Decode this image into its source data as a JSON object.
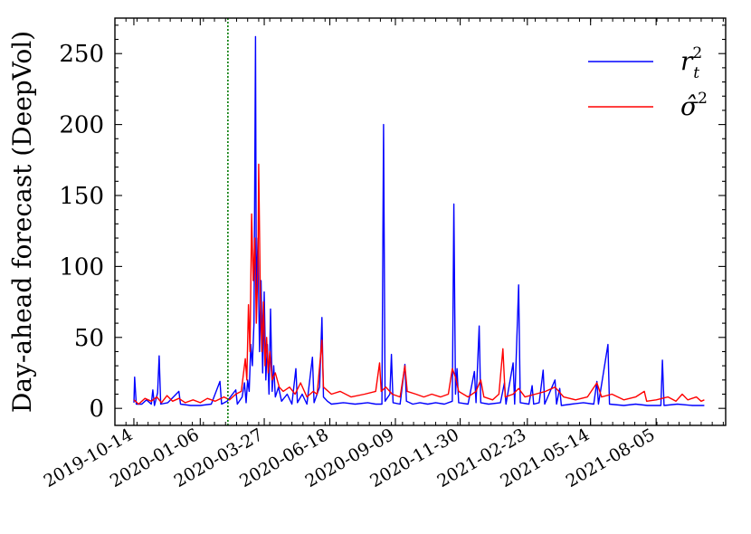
{
  "chart_data": {
    "type": "line",
    "title": "",
    "xlabel": "",
    "ylabel": "Day-ahead forecast (DeepVol)",
    "x_range": [
      "2019-09-20",
      "2021-11-01"
    ],
    "ylim": [
      -12,
      275
    ],
    "yticks": [
      0,
      50,
      100,
      150,
      200,
      250
    ],
    "xticks": [
      "2019-10-14",
      "2020-01-06",
      "2020-03-27",
      "2020-06-18",
      "2020-09-09",
      "2020-11-30",
      "2021-02-23",
      "2021-05-14",
      "2021-08-05"
    ],
    "grid": false,
    "legend_position": "top-right",
    "colors": {
      "realized": "#0000ff",
      "forecast": "#ff0000",
      "cutoff_line": "#007a00"
    },
    "vertical_line_date": "2020-02-10",
    "series": [
      {
        "name": "r_t^2",
        "legend_text": "r",
        "legend_sup": "2",
        "legend_sub": "t",
        "color": "#0000ff",
        "points": [
          [
            "2019-10-14",
            4
          ],
          [
            "2019-10-15",
            22
          ],
          [
            "2019-10-17",
            3
          ],
          [
            "2019-10-24",
            3
          ],
          [
            "2019-10-30",
            6
          ],
          [
            "2019-11-05",
            3
          ],
          [
            "2019-11-07",
            13
          ],
          [
            "2019-11-09",
            2
          ],
          [
            "2019-11-13",
            11
          ],
          [
            "2019-11-15",
            37
          ],
          [
            "2019-11-17",
            3
          ],
          [
            "2019-11-26",
            4
          ],
          [
            "2019-12-10",
            12
          ],
          [
            "2019-12-12",
            3
          ],
          [
            "2019-12-25",
            2
          ],
          [
            "2020-01-06",
            2
          ],
          [
            "2020-01-20",
            3
          ],
          [
            "2020-01-31",
            19
          ],
          [
            "2020-02-02",
            3
          ],
          [
            "2020-02-09",
            5
          ],
          [
            "2020-02-20",
            13
          ],
          [
            "2020-02-22",
            3
          ],
          [
            "2020-02-28",
            8
          ],
          [
            "2020-03-02",
            18
          ],
          [
            "2020-03-04",
            4
          ],
          [
            "2020-03-06",
            20
          ],
          [
            "2020-03-08",
            12
          ],
          [
            "2020-03-10",
            45
          ],
          [
            "2020-03-12",
            30
          ],
          [
            "2020-03-14",
            60
          ],
          [
            "2020-03-16",
            262
          ],
          [
            "2020-03-17",
            75
          ],
          [
            "2020-03-19",
            120
          ],
          [
            "2020-03-21",
            40
          ],
          [
            "2020-03-23",
            90
          ],
          [
            "2020-03-25",
            25
          ],
          [
            "2020-03-27",
            82
          ],
          [
            "2020-03-29",
            20
          ],
          [
            "2020-03-31",
            45
          ],
          [
            "2020-04-02",
            10
          ],
          [
            "2020-04-04",
            70
          ],
          [
            "2020-04-06",
            12
          ],
          [
            "2020-04-08",
            30
          ],
          [
            "2020-04-10",
            8
          ],
          [
            "2020-04-14",
            15
          ],
          [
            "2020-04-18",
            5
          ],
          [
            "2020-04-25",
            10
          ],
          [
            "2020-05-01",
            3
          ],
          [
            "2020-05-06",
            28
          ],
          [
            "2020-05-08",
            4
          ],
          [
            "2020-05-14",
            10
          ],
          [
            "2020-05-20",
            3
          ],
          [
            "2020-05-27",
            36
          ],
          [
            "2020-05-29",
            4
          ],
          [
            "2020-06-05",
            15
          ],
          [
            "2020-06-08",
            64
          ],
          [
            "2020-06-10",
            8
          ],
          [
            "2020-06-15",
            5
          ],
          [
            "2020-06-20",
            3
          ],
          [
            "2020-07-05",
            4
          ],
          [
            "2020-07-20",
            3
          ],
          [
            "2020-08-05",
            4
          ],
          [
            "2020-08-15",
            3
          ],
          [
            "2020-08-23",
            3
          ],
          [
            "2020-08-25",
            200
          ],
          [
            "2020-08-27",
            5
          ],
          [
            "2020-09-02",
            10
          ],
          [
            "2020-09-04",
            38
          ],
          [
            "2020-09-06",
            4
          ],
          [
            "2020-09-15",
            3
          ],
          [
            "2020-09-21",
            31
          ],
          [
            "2020-09-23",
            5
          ],
          [
            "2020-10-01",
            3
          ],
          [
            "2020-10-10",
            4
          ],
          [
            "2020-10-20",
            3
          ],
          [
            "2020-10-30",
            4
          ],
          [
            "2020-11-10",
            3
          ],
          [
            "2020-11-20",
            5
          ],
          [
            "2020-11-22",
            144
          ],
          [
            "2020-11-24",
            10
          ],
          [
            "2020-11-26",
            28
          ],
          [
            "2020-11-28",
            4
          ],
          [
            "2020-12-10",
            3
          ],
          [
            "2020-12-18",
            26
          ],
          [
            "2020-12-20",
            4
          ],
          [
            "2020-12-24",
            58
          ],
          [
            "2020-12-26",
            4
          ],
          [
            "2021-01-05",
            3
          ],
          [
            "2021-01-20",
            4
          ],
          [
            "2021-01-25",
            18
          ],
          [
            "2021-01-27",
            3
          ],
          [
            "2021-02-05",
            32
          ],
          [
            "2021-02-07",
            3
          ],
          [
            "2021-02-12",
            87
          ],
          [
            "2021-02-14",
            4
          ],
          [
            "2021-02-25",
            3
          ],
          [
            "2021-03-01",
            16
          ],
          [
            "2021-03-03",
            3
          ],
          [
            "2021-03-10",
            4
          ],
          [
            "2021-03-15",
            27
          ],
          [
            "2021-03-17",
            3
          ],
          [
            "2021-03-30",
            20
          ],
          [
            "2021-04-01",
            3
          ],
          [
            "2021-04-05",
            14
          ],
          [
            "2021-04-07",
            2
          ],
          [
            "2021-04-20",
            3
          ],
          [
            "2021-05-05",
            4
          ],
          [
            "2021-05-18",
            3
          ],
          [
            "2021-05-22",
            19
          ],
          [
            "2021-05-24",
            3
          ],
          [
            "2021-06-05",
            45
          ],
          [
            "2021-06-07",
            3
          ],
          [
            "2021-06-25",
            2
          ],
          [
            "2021-07-10",
            3
          ],
          [
            "2021-07-25",
            2
          ],
          [
            "2021-08-11",
            2
          ],
          [
            "2021-08-13",
            34
          ],
          [
            "2021-08-15",
            2
          ],
          [
            "2021-09-01",
            3
          ],
          [
            "2021-09-20",
            2
          ],
          [
            "2021-10-05",
            2
          ]
        ]
      },
      {
        "name": "sigma_hat^2",
        "legend_text": "σ̂",
        "legend_sup": "2",
        "legend_sub": "",
        "color": "#ff0000",
        "points": [
          [
            "2019-10-14",
            6
          ],
          [
            "2019-10-20",
            3
          ],
          [
            "2019-10-28",
            7
          ],
          [
            "2019-11-05",
            5
          ],
          [
            "2019-11-12",
            8
          ],
          [
            "2019-11-18",
            4
          ],
          [
            "2019-11-25",
            9
          ],
          [
            "2019-12-02",
            5
          ],
          [
            "2019-12-10",
            7
          ],
          [
            "2019-12-18",
            4
          ],
          [
            "2019-12-28",
            6
          ],
          [
            "2020-01-06",
            4
          ],
          [
            "2020-01-15",
            7
          ],
          [
            "2020-01-25",
            5
          ],
          [
            "2020-02-05",
            8
          ],
          [
            "2020-02-12",
            6
          ],
          [
            "2020-02-20",
            10
          ],
          [
            "2020-02-27",
            12
          ],
          [
            "2020-03-03",
            35
          ],
          [
            "2020-03-05",
            20
          ],
          [
            "2020-03-07",
            73
          ],
          [
            "2020-03-09",
            40
          ],
          [
            "2020-03-11",
            137
          ],
          [
            "2020-03-13",
            90
          ],
          [
            "2020-03-15",
            120
          ],
          [
            "2020-03-17",
            60
          ],
          [
            "2020-03-19",
            100
          ],
          [
            "2020-03-20",
            172
          ],
          [
            "2020-03-22",
            80
          ],
          [
            "2020-03-24",
            40
          ],
          [
            "2020-03-26",
            75
          ],
          [
            "2020-03-28",
            30
          ],
          [
            "2020-03-30",
            50
          ],
          [
            "2020-04-01",
            25
          ],
          [
            "2020-04-03",
            40
          ],
          [
            "2020-04-06",
            20
          ],
          [
            "2020-04-10",
            25
          ],
          [
            "2020-04-15",
            15
          ],
          [
            "2020-04-20",
            12
          ],
          [
            "2020-04-28",
            15
          ],
          [
            "2020-05-05",
            10
          ],
          [
            "2020-05-12",
            18
          ],
          [
            "2020-05-20",
            8
          ],
          [
            "2020-05-28",
            12
          ],
          [
            "2020-06-02",
            10
          ],
          [
            "2020-06-08",
            48
          ],
          [
            "2020-06-10",
            15
          ],
          [
            "2020-06-20",
            10
          ],
          [
            "2020-07-01",
            12
          ],
          [
            "2020-07-15",
            8
          ],
          [
            "2020-08-01",
            10
          ],
          [
            "2020-08-15",
            12
          ],
          [
            "2020-08-20",
            32
          ],
          [
            "2020-08-22",
            12
          ],
          [
            "2020-08-28",
            15
          ],
          [
            "2020-09-05",
            10
          ],
          [
            "2020-09-15",
            8
          ],
          [
            "2020-09-21",
            30
          ],
          [
            "2020-09-24",
            12
          ],
          [
            "2020-10-05",
            10
          ],
          [
            "2020-10-15",
            8
          ],
          [
            "2020-10-25",
            10
          ],
          [
            "2020-11-05",
            8
          ],
          [
            "2020-11-15",
            10
          ],
          [
            "2020-11-20",
            28
          ],
          [
            "2020-11-24",
            22
          ],
          [
            "2020-11-28",
            12
          ],
          [
            "2020-12-10",
            8
          ],
          [
            "2020-12-20",
            12
          ],
          [
            "2020-12-26",
            20
          ],
          [
            "2020-12-30",
            8
          ],
          [
            "2021-01-10",
            6
          ],
          [
            "2021-01-18",
            10
          ],
          [
            "2021-01-23",
            42
          ],
          [
            "2021-01-26",
            8
          ],
          [
            "2021-02-05",
            10
          ],
          [
            "2021-02-12",
            14
          ],
          [
            "2021-02-20",
            8
          ],
          [
            "2021-03-05",
            10
          ],
          [
            "2021-03-18",
            12
          ],
          [
            "2021-03-30",
            15
          ],
          [
            "2021-04-10",
            8
          ],
          [
            "2021-04-25",
            6
          ],
          [
            "2021-05-10",
            8
          ],
          [
            "2021-05-22",
            18
          ],
          [
            "2021-05-28",
            8
          ],
          [
            "2021-06-10",
            10
          ],
          [
            "2021-06-25",
            6
          ],
          [
            "2021-07-10",
            8
          ],
          [
            "2021-07-21",
            12
          ],
          [
            "2021-07-24",
            5
          ],
          [
            "2021-08-05",
            6
          ],
          [
            "2021-08-20",
            8
          ],
          [
            "2021-08-30",
            5
          ],
          [
            "2021-09-07",
            10
          ],
          [
            "2021-09-14",
            6
          ],
          [
            "2021-09-25",
            8
          ],
          [
            "2021-10-01",
            5
          ],
          [
            "2021-10-05",
            6
          ]
        ]
      }
    ]
  }
}
